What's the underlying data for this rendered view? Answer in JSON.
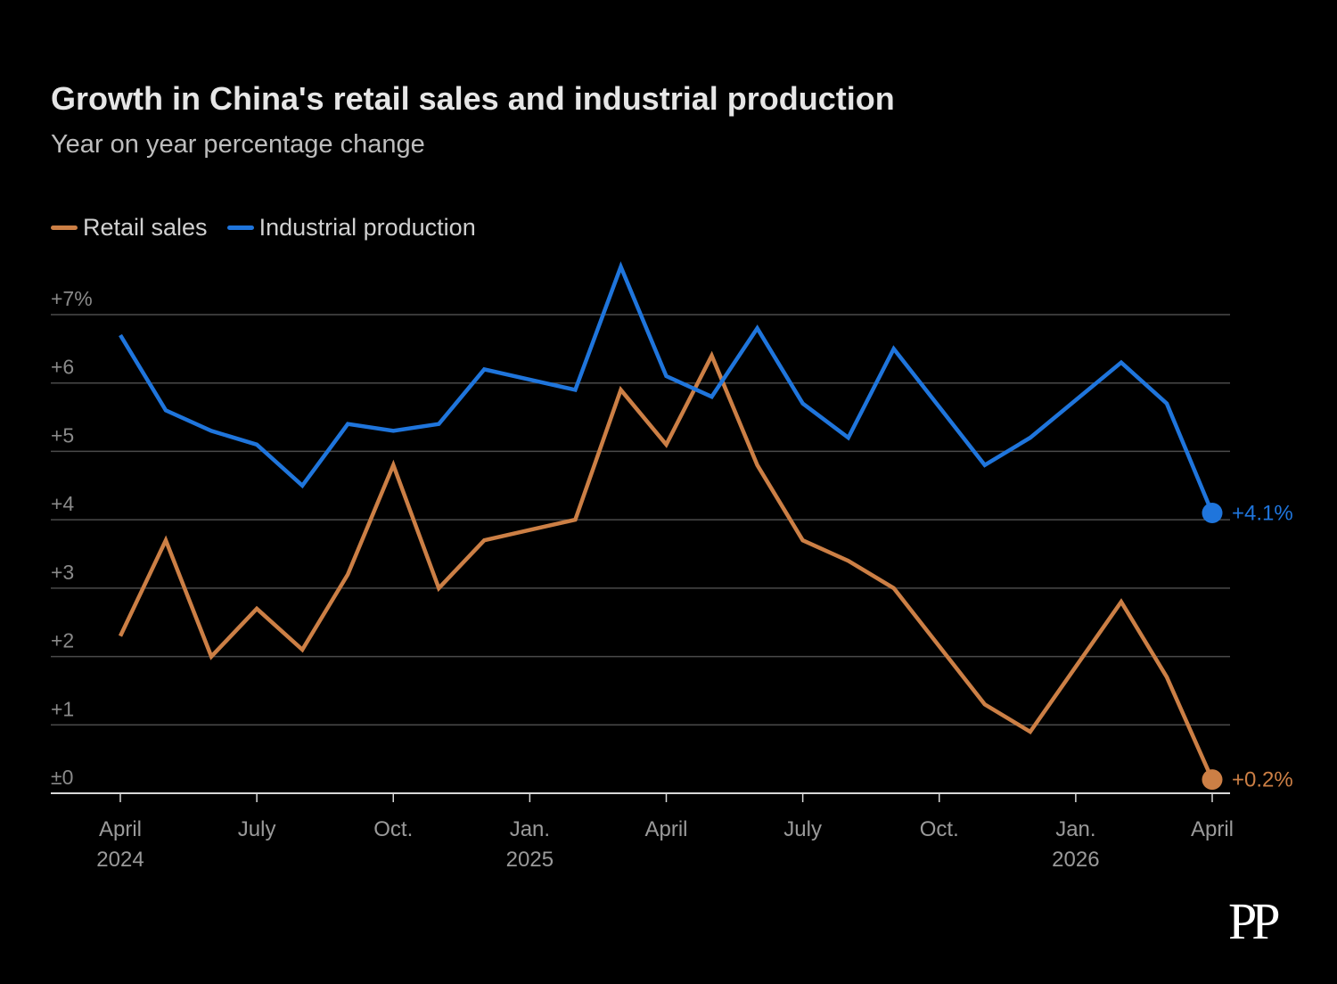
{
  "chart_data": {
    "type": "line",
    "title": "Growth in China's retail sales and industrial production",
    "subtitle": "Year on year percentage change",
    "xlabel": "",
    "ylabel": "",
    "ylim": [
      0,
      7
    ],
    "yticks": [
      {
        "value": 7,
        "label": "+7%"
      },
      {
        "value": 6,
        "label": "+6"
      },
      {
        "value": 5,
        "label": "+5"
      },
      {
        "value": 4,
        "label": "+4"
      },
      {
        "value": 3,
        "label": "+3"
      },
      {
        "value": 2,
        "label": "+2"
      },
      {
        "value": 1,
        "label": "+1"
      },
      {
        "value": 0,
        "label": "±0"
      }
    ],
    "x": [
      "2024-04",
      "2024-05",
      "2024-06",
      "2024-07",
      "2024-08",
      "2024-09",
      "2024-10",
      "2024-11",
      "2024-12",
      "2025-01",
      "2025-02",
      "2025-03",
      "2025-04",
      "2025-05",
      "2025-06",
      "2025-07",
      "2025-08",
      "2025-09",
      "2025-10",
      "2025-11",
      "2025-12",
      "2026-01",
      "2026-02",
      "2026-03",
      "2026-04"
    ],
    "xticks": [
      {
        "index": 0,
        "line1": "April",
        "line2": "2024"
      },
      {
        "index": 3,
        "line1": "July",
        "line2": ""
      },
      {
        "index": 6,
        "line1": "Oct.",
        "line2": ""
      },
      {
        "index": 9,
        "line1": "Jan.",
        "line2": "2025"
      },
      {
        "index": 12,
        "line1": "April",
        "line2": ""
      },
      {
        "index": 15,
        "line1": "July",
        "line2": ""
      },
      {
        "index": 18,
        "line1": "Oct.",
        "line2": ""
      },
      {
        "index": 21,
        "line1": "Jan.",
        "line2": "2026"
      },
      {
        "index": 24,
        "line1": "April",
        "line2": ""
      }
    ],
    "series": [
      {
        "name": "Retail sales",
        "color": "#cc7f45",
        "values": [
          2.3,
          3.7,
          2.0,
          2.7,
          2.1,
          3.2,
          4.8,
          3.0,
          3.7,
          3.85,
          4.0,
          5.9,
          5.1,
          6.4,
          4.8,
          3.7,
          3.4,
          3.0,
          2.15,
          1.3,
          0.9,
          1.85,
          2.8,
          1.7,
          0.2
        ],
        "end_label": "+0.2%"
      },
      {
        "name": "Industrial production",
        "color": "#1f75dc",
        "values": [
          6.7,
          5.6,
          5.3,
          5.1,
          4.5,
          5.4,
          5.3,
          5.4,
          6.2,
          6.05,
          5.9,
          7.7,
          6.1,
          5.8,
          6.8,
          5.7,
          5.2,
          6.5,
          5.65,
          4.8,
          5.2,
          5.75,
          6.3,
          5.7,
          4.1
        ],
        "end_label": "+4.1%"
      }
    ],
    "grid": true,
    "legend_position": "top-left"
  },
  "brand": {
    "logo_text": "PP"
  }
}
